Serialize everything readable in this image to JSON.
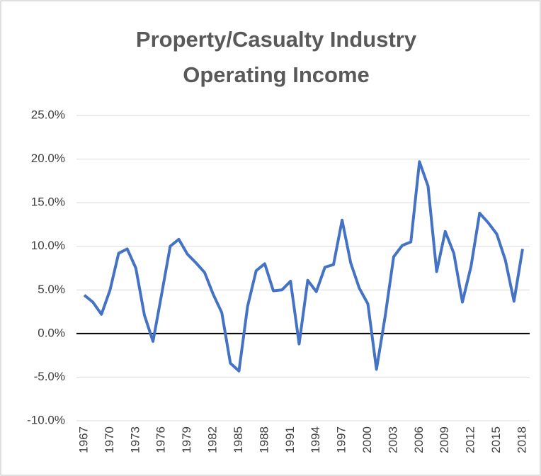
{
  "chart_data": {
    "type": "line",
    "title": [
      "Property/Casualty Industry",
      "Operating Income"
    ],
    "categories": [
      "1967",
      null,
      null,
      "1970",
      null,
      null,
      "1973",
      null,
      null,
      "1976",
      null,
      null,
      "1979",
      null,
      null,
      "1982",
      null,
      null,
      "1985",
      null,
      null,
      "1988",
      null,
      null,
      "1991",
      null,
      null,
      "1994",
      null,
      null,
      "1997",
      null,
      null,
      "2000",
      null,
      null,
      "2003",
      null,
      null,
      "2006",
      null,
      null,
      "2009",
      null,
      null,
      "2012",
      null,
      null,
      "2015",
      null,
      null,
      "2018"
    ],
    "series": [
      {
        "name": null,
        "color": "#4472c4",
        "values": [
          4.4,
          3.6,
          2.2,
          5.0,
          9.2,
          9.7,
          7.5,
          2.1,
          -0.9,
          4.5,
          10.0,
          10.8,
          9.1,
          8.1,
          7.0,
          4.5,
          2.4,
          -3.4,
          -4.3,
          3.1,
          7.2,
          8.0,
          4.9,
          5.0,
          6.0,
          -1.2,
          6.1,
          4.8,
          7.6,
          7.9,
          13.0,
          8.1,
          5.2,
          3.4,
          -4.1,
          1.9,
          8.8,
          10.1,
          10.5,
          19.7,
          16.9,
          7.1,
          11.7,
          9.2,
          3.6,
          7.7,
          13.8,
          12.7,
          11.4,
          8.4,
          3.7,
          9.7
        ]
      }
    ],
    "ylim": [
      -10,
      25
    ],
    "yticks": [
      {
        "value": -10,
        "label": "-10.0%"
      },
      {
        "value": -5,
        "label": "-5.0%"
      },
      {
        "value": 0,
        "label": "0.0%"
      },
      {
        "value": 5,
        "label": "5.0%"
      },
      {
        "value": 10,
        "label": "10.0%"
      },
      {
        "value": 15,
        "label": "15.0%"
      },
      {
        "value": 20,
        "label": "20.0%"
      },
      {
        "value": 25,
        "label": "25.0%"
      }
    ],
    "grid": true
  }
}
